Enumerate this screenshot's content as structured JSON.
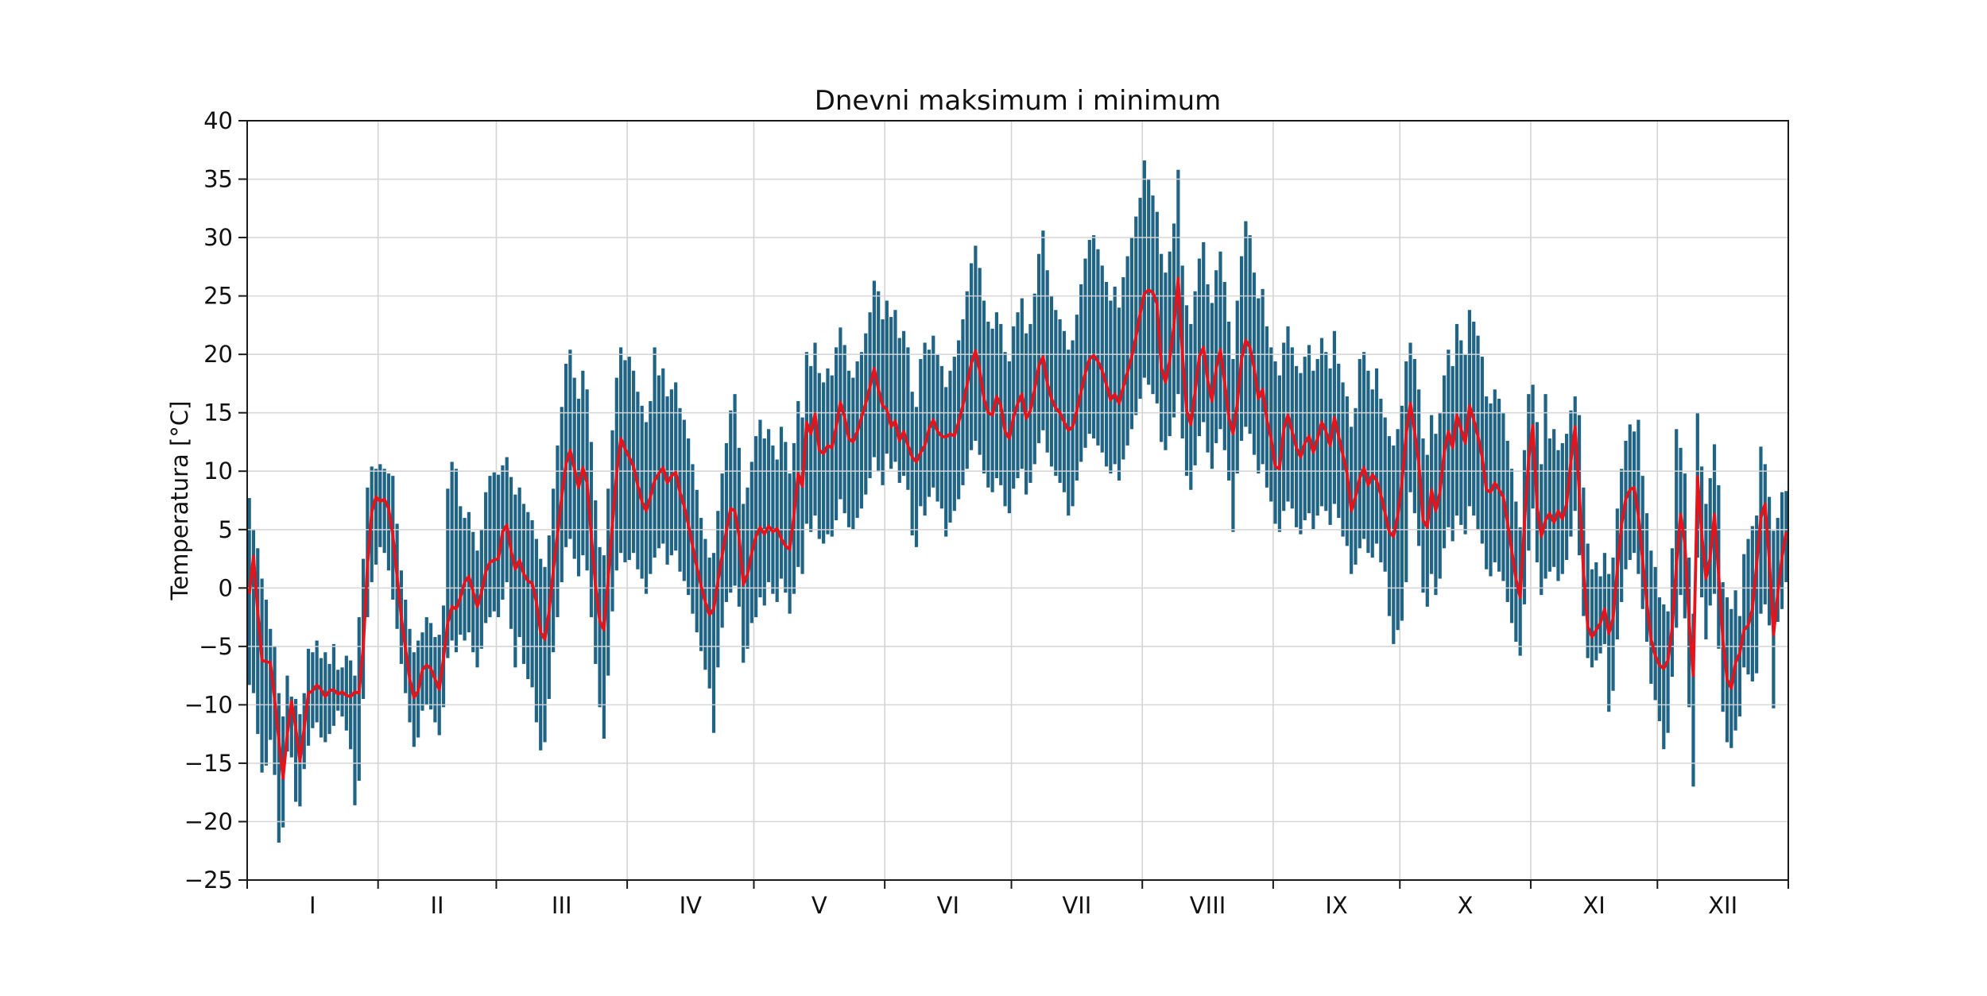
{
  "chart_data": {
    "type": "bar",
    "subtype": "daily-range-bars-with-mean-line",
    "title": "Dnevni maksimum i minimum",
    "xlabel": "",
    "ylabel": "Temperatura [°C]",
    "ylim": [
      -25,
      40
    ],
    "yticks": [
      -25,
      -20,
      -15,
      -10,
      -5,
      0,
      5,
      10,
      15,
      20,
      25,
      30,
      35,
      40
    ],
    "grid": true,
    "legend_position": "none",
    "xtick_labels": [
      "I",
      "II",
      "III",
      "IV",
      "V",
      "VI",
      "VII",
      "VIII",
      "IX",
      "X",
      "XI",
      "XII"
    ],
    "month_lengths": [
      31,
      28,
      31,
      30,
      31,
      30,
      31,
      31,
      30,
      31,
      30,
      31
    ],
    "colors": {
      "bar": "#1f6385",
      "mean_line": "#e6131a",
      "grid": "#d4d4d4",
      "spine": "#1a1a1a",
      "background": "#ffffff"
    },
    "series": [
      {
        "name": "dnevni-minimum",
        "role": "bar-low",
        "values": [
          -8.3,
          -9.0,
          -12.5,
          -15.8,
          -15.2,
          -13.0,
          -16.0,
          -21.8,
          -20.5,
          -14.0,
          -14.5,
          -18.3,
          -18.7,
          -15.5,
          -13.5,
          -12.0,
          -11.5,
          -12.8,
          -13.2,
          -12.5,
          -11.8,
          -10.5,
          -11.0,
          -12.2,
          -13.8,
          -18.6,
          -16.5,
          -9.5,
          -2.5,
          0.5,
          2.0,
          3.5,
          3.0,
          1.5,
          -1.0,
          -3.5,
          -6.5,
          -9.0,
          -11.5,
          -13.6,
          -12.8,
          -10.5,
          -10.0,
          -10.4,
          -11.5,
          -12.6,
          -10.2,
          -6.0,
          -4.5,
          -5.5,
          -4.0,
          -4.5,
          -3.8,
          -5.5,
          -6.8,
          -5.2,
          -3.0,
          -2.5,
          -2.0,
          -2.5,
          -1.0,
          0.5,
          -3.5,
          -6.8,
          -4.2,
          -6.5,
          -7.8,
          -8.5,
          -11.5,
          -13.9,
          -13.2,
          -9.5,
          -5.5,
          -2.5,
          0.5,
          3.5,
          4.2,
          2.5,
          1.0,
          2.8,
          1.5,
          -2.5,
          -6.5,
          -10.2,
          -12.9,
          -7.5,
          -2.0,
          1.5,
          3.0,
          2.2,
          2.4,
          3.0,
          1.6,
          0.8,
          -0.5,
          1.2,
          2.6,
          3.4,
          3.8,
          2.0,
          2.8,
          3.2,
          1.4,
          0.6,
          -0.6,
          -2.2,
          -3.8,
          -5.4,
          -7.0,
          -8.6,
          -12.4,
          -6.8,
          -3.4,
          -1.2,
          -0.4,
          0.2,
          -1.6,
          -6.4,
          -5.2,
          -3.0,
          -2.5,
          -0.8,
          -1.5,
          0.5,
          -0.5,
          -1.2,
          0.8,
          -0.4,
          -2.2,
          -0.5,
          1.8,
          1.2,
          5.5,
          4.8,
          6.2,
          4.2,
          3.8,
          4.6,
          4.4,
          5.8,
          7.6,
          6.4,
          5.2,
          5.0,
          6.0,
          6.8,
          8.0,
          9.4,
          11.2,
          10.0,
          8.8,
          11.5,
          10.2,
          10.8,
          9.0,
          9.6,
          8.4,
          4.5,
          3.5,
          7.0,
          6.2,
          7.8,
          8.6,
          7.4,
          6.8,
          4.4,
          5.6,
          6.6,
          7.6,
          8.8,
          10.2,
          11.8,
          12.6,
          11.4,
          9.8,
          8.6,
          8.2,
          9.4,
          8.8,
          7.0,
          6.4,
          8.5,
          9.4,
          10.2,
          8.0,
          9.0,
          10.6,
          12.4,
          13.5,
          11.6,
          10.4,
          9.6,
          9.0,
          8.2,
          6.2,
          7.0,
          9.2,
          10.8,
          12.0,
          13.2,
          12.8,
          12.2,
          11.6,
          10.4,
          9.8,
          10.6,
          9.2,
          11.0,
          12.2,
          13.6,
          14.8,
          16.2,
          18.0,
          17.4,
          16.6,
          15.8,
          12.5,
          11.8,
          13.0,
          14.6,
          16.6,
          12.8,
          9.6,
          8.4,
          10.5,
          13.0,
          14.2,
          11.6,
          10.2,
          12.4,
          13.6,
          11.8,
          9.2,
          4.8,
          9.8,
          12.6,
          13.8,
          13.2,
          11.4,
          9.8,
          10.6,
          8.6,
          7.4,
          5.5,
          4.8,
          6.6,
          7.4,
          6.8,
          5.2,
          4.6,
          5.8,
          6.4,
          5.0,
          6.2,
          7.0,
          6.6,
          5.4,
          7.2,
          6.0,
          4.4,
          3.6,
          1.2,
          2.0,
          3.4,
          4.2,
          3.0,
          2.6,
          3.8,
          2.2,
          1.4,
          -2.4,
          -4.8,
          -3.6,
          -2.8,
          0.5,
          8.2,
          6.4,
          3.6,
          -0.4,
          -1.6,
          1.2,
          -0.6,
          0.8,
          3.4,
          5.2,
          4.0,
          6.2,
          5.4,
          4.6,
          7.0,
          6.2,
          5.0,
          3.8,
          1.6,
          1.0,
          2.2,
          1.4,
          0.6,
          -1.2,
          -3.0,
          -4.6,
          -5.8,
          -1.4,
          3.2,
          6.8,
          2.2,
          -0.6,
          0.8,
          1.4,
          1.8,
          0.6,
          1.2,
          2.4,
          4.4,
          6.6,
          2.8,
          -2.4,
          -6.0,
          -6.8,
          -6.2,
          -5.6,
          -4.8,
          -10.6,
          -8.8,
          -4.4,
          -1.2,
          1.6,
          2.4,
          3.0,
          1.2,
          -1.8,
          -4.6,
          -8.2,
          -9.6,
          -11.4,
          -13.8,
          -12.4,
          -7.6,
          -3.4,
          -0.6,
          -2.6,
          -10.2,
          -17.0,
          2.6,
          -0.8,
          -4.4,
          -1.5,
          -0.5,
          -5.2,
          -10.6,
          -13.2,
          -13.7,
          -12.2,
          -11.0,
          -6.8,
          -7.4,
          -8.0,
          -7.3,
          -2.2,
          -1.4,
          -3.2,
          -10.3,
          -2.9,
          -1.8,
          0.5
        ]
      },
      {
        "name": "dnevni-maksimum",
        "role": "bar-high",
        "values": [
          7.7,
          5.0,
          3.4,
          0.8,
          -1.0,
          -3.5,
          -5.0,
          -9.0,
          -11.0,
          -7.5,
          -9.3,
          -9.5,
          -10.8,
          -9.0,
          -5.2,
          -5.5,
          -4.5,
          -6.0,
          -5.5,
          -6.5,
          -4.8,
          -7.0,
          -6.8,
          -5.8,
          -6.2,
          -7.5,
          -2.5,
          2.5,
          8.6,
          10.4,
          10.2,
          10.6,
          10.2,
          9.8,
          9.6,
          5.5,
          1.5,
          -1.0,
          -3.5,
          -5.5,
          -4.5,
          -3.8,
          -2.5,
          -3.0,
          -4.2,
          -4.0,
          -1.5,
          8.5,
          10.8,
          10.2,
          7.0,
          6.0,
          6.5,
          4.8,
          3.2,
          5.0,
          8.2,
          9.6,
          9.9,
          9.7,
          10.5,
          11.2,
          9.5,
          8.0,
          8.6,
          7.2,
          6.5,
          5.8,
          4.2,
          2.5,
          1.8,
          4.5,
          8.5,
          12.2,
          15.5,
          19.2,
          20.4,
          18.0,
          16.2,
          18.6,
          17.0,
          12.5,
          7.5,
          3.5,
          2.8,
          8.5,
          13.5,
          18.0,
          20.6,
          19.5,
          19.8,
          18.6,
          16.8,
          15.6,
          14.2,
          16.0,
          20.6,
          18.2,
          18.8,
          16.4,
          17.0,
          17.6,
          15.4,
          14.4,
          12.8,
          10.6,
          8.4,
          6.0,
          4.2,
          2.6,
          3.0,
          6.6,
          9.8,
          12.4,
          15.2,
          16.6,
          12.0,
          7.2,
          8.6,
          10.8,
          13.0,
          14.4,
          12.8,
          13.6,
          12.2,
          11.0,
          13.8,
          12.5,
          9.8,
          12.4,
          16.0,
          14.6,
          20.2,
          19.0,
          21.0,
          18.4,
          17.6,
          18.8,
          18.2,
          20.6,
          22.3,
          20.8,
          18.6,
          18.0,
          19.4,
          20.2,
          21.8,
          23.6,
          26.3,
          25.4,
          23.0,
          24.6,
          23.2,
          23.8,
          21.4,
          22.0,
          20.6,
          16.8,
          15.5,
          19.6,
          21.0,
          20.4,
          21.6,
          20.0,
          19.0,
          17.2,
          18.6,
          19.8,
          21.2,
          23.0,
          25.4,
          27.8,
          29.3,
          27.4,
          24.6,
          22.8,
          22.2,
          23.6,
          22.6,
          20.2,
          19.4,
          22.4,
          23.6,
          24.8,
          21.8,
          22.6,
          25.2,
          28.6,
          30.6,
          27.2,
          25.0,
          23.8,
          23.0,
          22.0,
          20.4,
          21.2,
          23.4,
          26.0,
          28.2,
          29.8,
          30.2,
          29.0,
          27.6,
          26.2,
          24.6,
          25.8,
          24.0,
          26.6,
          28.4,
          30.0,
          31.8,
          33.4,
          36.6,
          35.0,
          33.6,
          32.2,
          28.6,
          27.0,
          28.8,
          31.2,
          35.8,
          27.6,
          24.2,
          22.6,
          25.4,
          28.2,
          29.6,
          26.0,
          24.4,
          27.2,
          28.8,
          26.2,
          22.8,
          19.6,
          24.6,
          28.4,
          31.4,
          30.2,
          27.0,
          24.8,
          25.6,
          22.4,
          20.6,
          19.4,
          18.2,
          21.0,
          22.4,
          20.6,
          19.0,
          18.4,
          19.8,
          20.8,
          18.6,
          19.6,
          21.4,
          20.2,
          18.8,
          22.0,
          19.2,
          17.6,
          16.4,
          13.8,
          15.4,
          19.6,
          20.2,
          18.6,
          17.0,
          18.8,
          16.2,
          14.6,
          13.0,
          12.2,
          13.6,
          15.6,
          19.4,
          21.0,
          19.6,
          17.0,
          12.8,
          11.4,
          14.8,
          13.2,
          15.0,
          18.2,
          20.4,
          19.0,
          22.6,
          21.2,
          20.0,
          23.8,
          22.8,
          21.6,
          19.8,
          16.4,
          15.8,
          17.0,
          16.2,
          15.0,
          12.6,
          10.2,
          7.4,
          5.2,
          11.8,
          16.6,
          17.4,
          14.2,
          10.6,
          16.6,
          12.8,
          13.6,
          11.8,
          12.4,
          13.2,
          15.2,
          16.4,
          14.8,
          8.6,
          3.8,
          1.6,
          2.2,
          1.0,
          3.0,
          1.2,
          2.6,
          6.8,
          10.2,
          12.6,
          14.0,
          13.4,
          14.4,
          9.6,
          6.4,
          3.2,
          1.8,
          -0.8,
          -1.4,
          -2.0,
          3.4,
          13.6,
          12.0,
          9.8,
          2.6,
          -2.2,
          15.0,
          10.4,
          7.2,
          9.4,
          12.3,
          8.8,
          0.5,
          -0.8,
          -1.8,
          -0.2,
          -2.4,
          2.9,
          4.2,
          5.3,
          6.2,
          12.1,
          10.6,
          7.8,
          4.9,
          6.0,
          8.2,
          8.3
        ]
      },
      {
        "name": "srednja-dnevna-temperatura",
        "role": "line",
        "values": [
          -0.5,
          2.7,
          -2.0,
          -6.2,
          -6.3,
          -6.4,
          -9.5,
          -13.0,
          -16.3,
          -12.5,
          -9.7,
          -12.0,
          -14.8,
          -12.0,
          -9.0,
          -8.8,
          -8.3,
          -8.7,
          -9.3,
          -8.8,
          -8.7,
          -9.1,
          -8.9,
          -9.2,
          -9.3,
          -8.9,
          -9.0,
          -5.0,
          2.0,
          6.5,
          7.8,
          7.4,
          7.6,
          6.8,
          4.5,
          1.0,
          -2.5,
          -5.2,
          -7.8,
          -9.4,
          -8.8,
          -7.0,
          -6.6,
          -6.9,
          -7.8,
          -8.7,
          -6.0,
          -3.0,
          -1.6,
          -1.8,
          -0.8,
          0.5,
          1.0,
          -0.3,
          -1.6,
          -0.4,
          1.4,
          2.2,
          2.4,
          2.5,
          4.8,
          5.4,
          3.2,
          1.6,
          2.4,
          1.2,
          0.6,
          0.4,
          -1.2,
          -3.8,
          -4.4,
          -2.0,
          1.5,
          4.6,
          7.8,
          10.6,
          11.8,
          10.2,
          8.6,
          10.3,
          9.0,
          4.5,
          0.2,
          -2.8,
          -3.6,
          0.8,
          5.5,
          9.8,
          12.8,
          11.9,
          11.2,
          10.4,
          8.8,
          7.4,
          6.6,
          7.8,
          9.2,
          9.8,
          10.3,
          9.0,
          9.6,
          9.9,
          8.2,
          7.0,
          5.4,
          3.6,
          1.8,
          0.2,
          -1.2,
          -2.3,
          -1.8,
          0.6,
          2.8,
          4.9,
          6.8,
          6.6,
          4.4,
          0.3,
          1.2,
          3.0,
          4.4,
          5.2,
          4.6,
          5.3,
          4.8,
          5.1,
          4.2,
          3.6,
          3.3,
          6.2,
          9.8,
          8.7,
          14.2,
          13.2,
          14.9,
          11.8,
          11.5,
          12.2,
          12.0,
          13.8,
          15.9,
          14.6,
          12.8,
          12.5,
          13.4,
          14.6,
          15.8,
          17.2,
          18.8,
          17.0,
          15.6,
          15.3,
          13.8,
          14.3,
          12.6,
          13.4,
          12.2,
          11.2,
          10.8,
          11.6,
          12.2,
          13.6,
          14.4,
          13.4,
          13.0,
          12.9,
          13.2,
          13.0,
          14.2,
          15.6,
          17.4,
          19.2,
          20.3,
          18.6,
          16.2,
          15.0,
          14.8,
          16.4,
          15.6,
          13.4,
          12.8,
          14.6,
          15.8,
          16.6,
          14.5,
          15.2,
          17.0,
          19.0,
          19.8,
          17.5,
          16.2,
          15.4,
          15.0,
          14.2,
          13.5,
          13.8,
          15.2,
          16.8,
          18.4,
          19.6,
          19.9,
          19.4,
          18.6,
          17.4,
          16.1,
          16.6,
          15.8,
          17.2,
          18.5,
          19.8,
          21.5,
          23.5,
          25.2,
          25.5,
          25.3,
          24.3,
          18.9,
          17.6,
          19.5,
          22.5,
          26.5,
          20.0,
          15.2,
          14.0,
          16.8,
          19.8,
          20.6,
          17.8,
          16.0,
          18.8,
          20.4,
          17.6,
          14.6,
          13.2,
          15.8,
          19.6,
          21.2,
          20.6,
          18.8,
          16.2,
          17.0,
          14.4,
          12.8,
          10.4,
          10.2,
          13.6,
          14.8,
          13.4,
          12.0,
          11.2,
          12.4,
          13.0,
          11.6,
          12.8,
          14.2,
          13.4,
          12.2,
          14.6,
          13.0,
          11.4,
          9.8,
          6.6,
          7.8,
          9.4,
          10.3,
          8.8,
          9.7,
          9.2,
          8.0,
          6.4,
          4.8,
          4.4,
          6.2,
          9.0,
          13.2,
          15.8,
          13.4,
          10.6,
          5.8,
          5.2,
          8.4,
          6.6,
          8.2,
          11.6,
          13.4,
          12.0,
          14.8,
          13.6,
          12.4,
          15.6,
          14.4,
          13.0,
          11.2,
          8.4,
          8.2,
          9.0,
          8.4,
          7.8,
          5.6,
          3.2,
          0.8,
          -0.8,
          5.5,
          11.0,
          13.9,
          7.0,
          4.4,
          5.8,
          6.4,
          5.6,
          6.6,
          5.9,
          7.2,
          10.8,
          13.8,
          8.2,
          1.4,
          -3.3,
          -4.2,
          -3.6,
          -3.0,
          -1.8,
          -3.9,
          -2.6,
          1.6,
          5.4,
          7.6,
          8.4,
          8.6,
          6.2,
          2.4,
          -1.3,
          -4.4,
          -5.8,
          -6.6,
          -6.9,
          -6.2,
          -3.4,
          2.0,
          6.3,
          3.8,
          -2.8,
          -7.5,
          9.5,
          4.6,
          0.8,
          2.6,
          6.3,
          1.2,
          -4.4,
          -7.8,
          -8.6,
          -6.4,
          -5.6,
          -3.6,
          -3.2,
          -1.8,
          2.0,
          6.0,
          7.2,
          2.4,
          -4.0,
          -0.5,
          2.6,
          4.8
        ]
      }
    ]
  }
}
